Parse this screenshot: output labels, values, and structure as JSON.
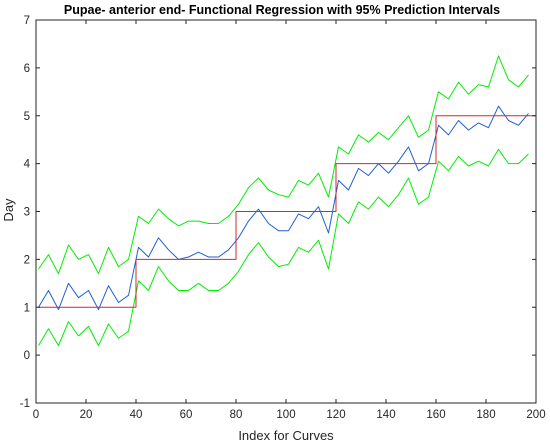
{
  "chart_data": {
    "type": "line",
    "title": "Pupae- anterior end- Functional Regression with 95% Prediction Intervals",
    "xlabel": "Index for Curves",
    "ylabel": "Day",
    "xlim": [
      0,
      200
    ],
    "ylim": [
      -1,
      7
    ],
    "xticks": [
      "0",
      "20",
      "40",
      "60",
      "80",
      "100",
      "120",
      "140",
      "160",
      "180",
      "200"
    ],
    "yticks": [
      "-1",
      "0",
      "1",
      "2",
      "3",
      "4",
      "5",
      "6",
      "7"
    ],
    "grid": false,
    "legend": "none",
    "series": [
      {
        "role": "true-value-step",
        "color": "#d62728",
        "x": [
          1,
          40,
          40,
          80,
          80,
          120,
          120,
          160,
          160,
          200
        ],
        "y": [
          1,
          1,
          2,
          2,
          3,
          3,
          4,
          4,
          5,
          5
        ]
      },
      {
        "role": "fitted",
        "color": "#1f5fd6",
        "x": [
          1,
          5,
          9,
          13,
          17,
          21,
          25,
          29,
          33,
          37,
          41,
          45,
          49,
          53,
          57,
          61,
          65,
          69,
          73,
          77,
          81,
          85,
          89,
          93,
          97,
          101,
          105,
          109,
          113,
          117,
          121,
          125,
          129,
          133,
          137,
          141,
          145,
          149,
          153,
          157,
          161,
          165,
          169,
          173,
          177,
          181,
          185,
          189,
          193,
          197
        ],
        "y": [
          1.0,
          1.35,
          0.95,
          1.5,
          1.2,
          1.35,
          0.95,
          1.45,
          1.1,
          1.25,
          2.25,
          2.05,
          2.45,
          2.2,
          2.0,
          2.05,
          2.15,
          2.05,
          2.05,
          2.2,
          2.45,
          2.8,
          3.05,
          2.75,
          2.6,
          2.6,
          2.95,
          2.85,
          3.1,
          2.55,
          3.65,
          3.45,
          3.9,
          3.75,
          4.0,
          3.8,
          4.05,
          4.35,
          3.85,
          4.0,
          4.8,
          4.6,
          4.9,
          4.7,
          4.85,
          4.75,
          5.2,
          4.9,
          4.8,
          5.05
        ]
      },
      {
        "role": "upper-95-prediction-interval",
        "color": "#00ee00",
        "x": [
          1,
          5,
          9,
          13,
          17,
          21,
          25,
          29,
          33,
          37,
          41,
          45,
          49,
          53,
          57,
          61,
          65,
          69,
          73,
          77,
          81,
          85,
          89,
          93,
          97,
          101,
          105,
          109,
          113,
          117,
          121,
          125,
          129,
          133,
          137,
          141,
          145,
          149,
          153,
          157,
          161,
          165,
          169,
          173,
          177,
          181,
          185,
          189,
          193,
          197
        ],
        "y": [
          1.8,
          2.1,
          1.7,
          2.3,
          2.0,
          2.1,
          1.7,
          2.25,
          1.85,
          2.0,
          2.9,
          2.75,
          3.05,
          2.85,
          2.7,
          2.8,
          2.8,
          2.75,
          2.75,
          2.9,
          3.15,
          3.5,
          3.7,
          3.45,
          3.35,
          3.3,
          3.65,
          3.55,
          3.8,
          3.3,
          4.35,
          4.2,
          4.6,
          4.45,
          4.65,
          4.5,
          4.75,
          5.0,
          4.55,
          4.7,
          5.5,
          5.35,
          5.7,
          5.45,
          5.65,
          5.6,
          6.25,
          5.75,
          5.6,
          5.85
        ]
      },
      {
        "role": "lower-95-prediction-interval",
        "color": "#00ee00",
        "x": [
          1,
          5,
          9,
          13,
          17,
          21,
          25,
          29,
          33,
          37,
          41,
          45,
          49,
          53,
          57,
          61,
          65,
          69,
          73,
          77,
          81,
          85,
          89,
          93,
          97,
          101,
          105,
          109,
          113,
          117,
          121,
          125,
          129,
          133,
          137,
          141,
          145,
          149,
          153,
          157,
          161,
          165,
          169,
          173,
          177,
          181,
          185,
          189,
          193,
          197
        ],
        "y": [
          0.2,
          0.55,
          0.2,
          0.7,
          0.4,
          0.6,
          0.2,
          0.65,
          0.35,
          0.5,
          1.55,
          1.35,
          1.85,
          1.55,
          1.35,
          1.35,
          1.5,
          1.35,
          1.35,
          1.5,
          1.75,
          2.1,
          2.35,
          2.05,
          1.85,
          1.9,
          2.25,
          2.15,
          2.4,
          1.8,
          2.95,
          2.75,
          3.2,
          3.05,
          3.3,
          3.1,
          3.35,
          3.7,
          3.15,
          3.3,
          4.05,
          3.85,
          4.15,
          3.95,
          4.05,
          3.95,
          4.3,
          4.0,
          4.0,
          4.2
        ]
      }
    ]
  }
}
